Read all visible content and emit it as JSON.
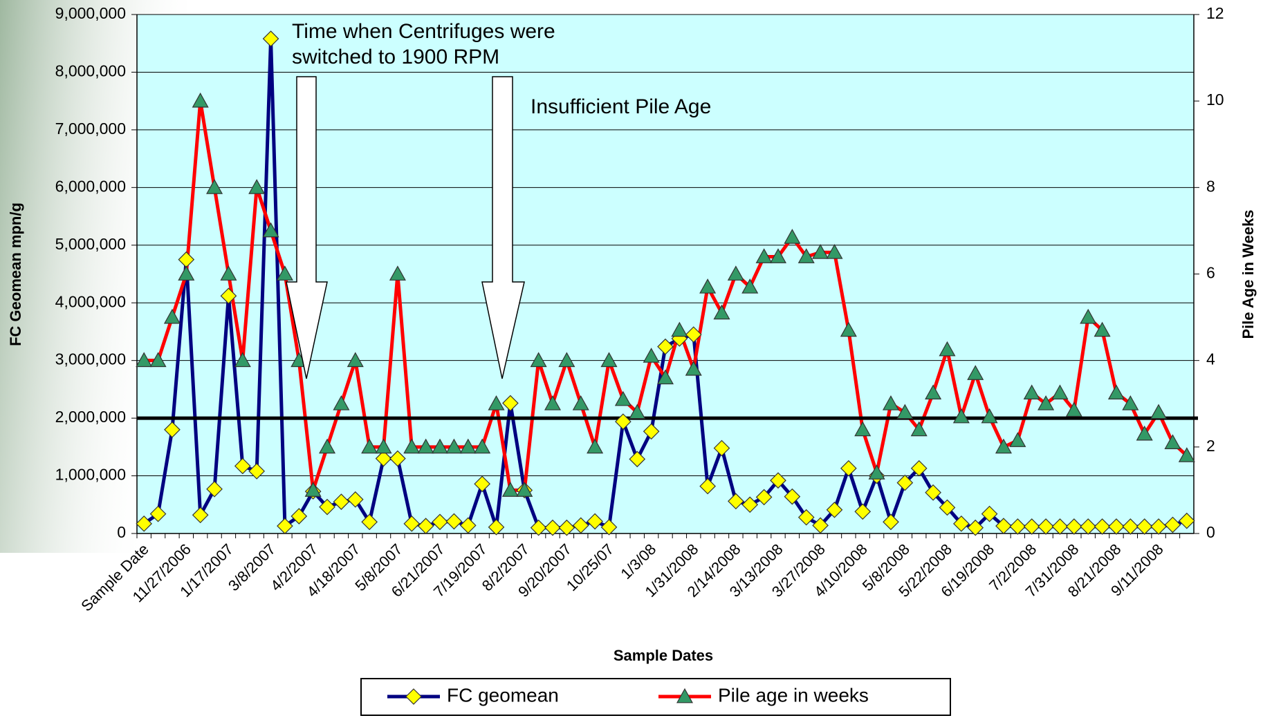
{
  "chart_data": {
    "type": "line",
    "xlabel": "Sample Dates",
    "ylabel": "FC Geomean mpn/g",
    "y2label": "Pile Age in Weeks",
    "categories": [
      "Sample Date",
      null,
      null,
      "11/27/2006",
      null,
      null,
      "1/17/2007",
      null,
      null,
      "3/8/2007",
      null,
      null,
      "4/2/2007",
      null,
      null,
      "4/18/2007",
      null,
      null,
      "5/8/2007",
      null,
      null,
      "6/21/2007",
      null,
      null,
      "7/19/2007",
      null,
      null,
      "8/2/2007",
      null,
      null,
      "9/20/2007",
      null,
      null,
      "10/25/07",
      null,
      null,
      "1/3/08",
      null,
      null,
      "1/31/2008",
      null,
      null,
      "2/14/2008",
      null,
      null,
      "3/13/2008",
      null,
      null,
      "3/27/2008",
      null,
      null,
      "4/10/2008",
      null,
      null,
      "5/8/2008",
      null,
      null,
      "5/22/2008",
      null,
      null,
      "6/19/2008",
      null,
      null,
      "7/2/2008",
      null,
      null,
      "7/31/2008",
      null,
      null,
      "8/21/2008",
      null,
      null,
      "9/11/2008",
      null,
      null
    ],
    "series": [
      {
        "name": "FC geomean",
        "color": "#000080",
        "marker": "diamond",
        "marker_color": "#ffff00",
        "values": [
          170000,
          340000,
          1800000,
          4750000,
          320000,
          770000,
          4120000,
          1170000,
          1080000,
          8580000,
          130000,
          300000,
          730000,
          460000,
          550000,
          590000,
          200000,
          1300000,
          1300000,
          170000,
          130000,
          200000,
          210000,
          140000,
          860000,
          110000,
          2260000,
          750000,
          100000,
          100000,
          100000,
          140000,
          210000,
          110000,
          1940000,
          1290000,
          1770000,
          3240000,
          3380000,
          3450000,
          820000,
          1480000,
          560000,
          500000,
          630000,
          920000,
          640000,
          280000,
          140000,
          410000,
          1130000,
          380000,
          1000000,
          200000,
          880000,
          1130000,
          710000,
          450000,
          170000,
          100000,
          340000,
          130000,
          120000,
          120000,
          120000,
          120000,
          120000,
          120000,
          120000,
          120000,
          120000,
          120000,
          120000,
          150000,
          220000
        ]
      },
      {
        "name": "Pile age in weeks",
        "color": "#ff0000",
        "marker": "triangle",
        "marker_color": "#339966",
        "axis": "y2",
        "values": [
          4,
          4,
          5,
          6,
          10,
          8,
          6,
          4,
          8,
          7,
          6,
          4,
          1,
          2,
          3,
          4,
          2,
          2,
          6,
          2,
          2,
          2,
          2,
          2,
          2,
          3,
          1,
          1,
          4,
          3,
          4,
          3,
          2,
          4,
          3.1,
          2.8,
          4.1,
          3.6,
          4.7,
          3.8,
          5.7,
          5.1,
          6,
          5.7,
          6.4,
          6.4,
          6.85,
          6.4,
          6.5,
          6.5,
          4.7,
          2.4,
          1.4,
          3,
          2.8,
          2.4,
          3.25,
          4.25,
          2.7,
          3.7,
          2.7,
          2,
          2.15,
          3.25,
          3,
          3.25,
          2.85,
          5,
          4.7,
          3.25,
          3,
          2.3,
          2.8,
          2.1,
          1.8
        ]
      }
    ],
    "ylim": [
      0,
      9000000
    ],
    "yticks": [
      0,
      {
        "value": 1000000,
        "label": "1,000,000"
      },
      {
        "value": 2000000,
        "label": "2,000,000"
      },
      {
        "value": 3000000,
        "label": "3,000,000"
      },
      {
        "value": 4000000,
        "label": "4,000,000"
      },
      {
        "value": 5000000,
        "label": "5,000,000"
      },
      {
        "value": 6000000,
        "label": "6,000,000"
      },
      {
        "value": 7000000,
        "label": "7,000,000"
      },
      {
        "value": 8000000,
        "label": "8,000,000"
      },
      {
        "value": 9000000,
        "label": "9,000,000"
      }
    ],
    "y2lim": [
      0,
      12
    ],
    "y2ticks": [
      0,
      2,
      4,
      6,
      8,
      10,
      12
    ],
    "grid": true,
    "reference_line": {
      "value": 2000000,
      "color": "#000000"
    },
    "annotations": [
      {
        "text_lines": [
          "Time when Centrifuges were",
          "switched to 1900 RPM"
        ]
      },
      {
        "text_lines": [
          "Insufficient Pile Age"
        ]
      }
    ],
    "legend": "bottom"
  }
}
